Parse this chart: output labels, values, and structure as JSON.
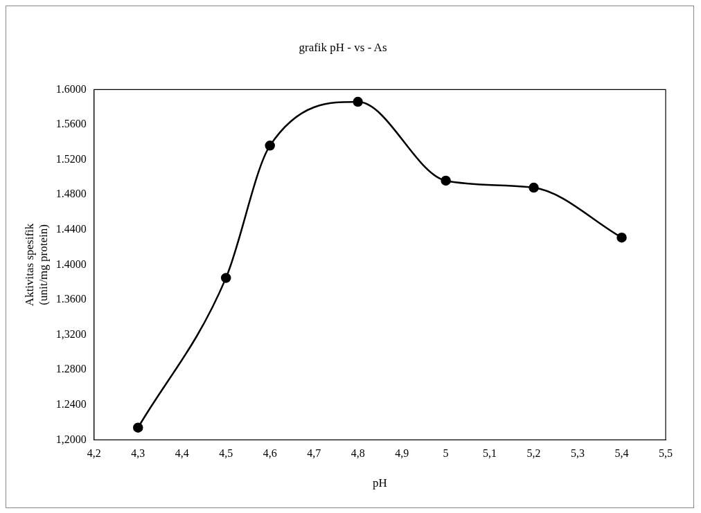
{
  "chart_data": {
    "type": "line",
    "title": "grafik pH - vs - As",
    "xlabel": "pH",
    "ylabel": "Aktivitas spesifik\n(unit/mg protein)",
    "x": [
      4.3,
      4.5,
      4.6,
      4.8,
      5.0,
      5.2,
      5.4
    ],
    "series": [
      {
        "color": "#000000",
        "values": [
          1.214,
          1.385,
          1.536,
          1.586,
          1.496,
          1.488,
          1.431
        ]
      }
    ],
    "xlim": [
      4.2,
      5.5
    ],
    "xticks": [
      {
        "value": 4.2,
        "label": "4,2"
      },
      {
        "value": 4.3,
        "label": "4,3"
      },
      {
        "value": 4.4,
        "label": "4,4"
      },
      {
        "value": 4.5,
        "label": "4,5"
      },
      {
        "value": 4.6,
        "label": "4,6"
      },
      {
        "value": 4.7,
        "label": "4,7"
      },
      {
        "value": 4.8,
        "label": "4,8"
      },
      {
        "value": 4.9,
        "label": "4,9"
      },
      {
        "value": 5,
        "label": "5"
      },
      {
        "value": 5.1,
        "label": "5,1"
      },
      {
        "value": 5.2,
        "label": "5,2"
      },
      {
        "value": 5.3,
        "label": "5,3"
      },
      {
        "value": 5.4,
        "label": "5,4"
      },
      {
        "value": 5.5,
        "label": "5,5"
      }
    ],
    "ylim": [
      1.2,
      1.6
    ],
    "yticks": [
      {
        "value": 1.2,
        "label": "1,2000"
      },
      {
        "value": 1.24,
        "label": "1.2400"
      },
      {
        "value": 1.28,
        "label": "1.2800"
      },
      {
        "value": 1.32,
        "label": "1,3200"
      },
      {
        "value": 1.36,
        "label": "1.3600"
      },
      {
        "value": 1.4,
        "label": "1.4000"
      },
      {
        "value": 1.44,
        "label": "1.4400"
      },
      {
        "value": 1.48,
        "label": "1.4800"
      },
      {
        "value": 1.52,
        "label": "1.5200"
      },
      {
        "value": 1.56,
        "label": "1.5600"
      },
      {
        "value": 1.6,
        "label": "1.6000"
      }
    ],
    "grid": false,
    "legend": false,
    "marker": "circle",
    "line_style": "solid"
  }
}
